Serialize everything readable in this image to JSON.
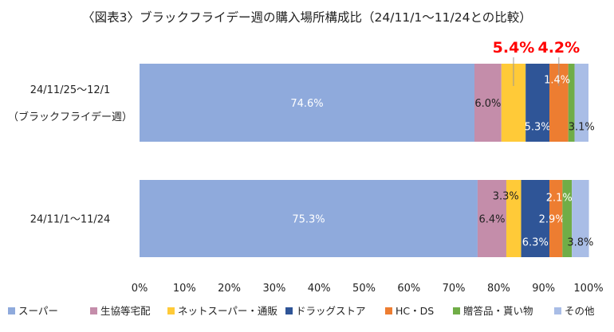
{
  "chart_data": {
    "type": "bar",
    "orientation": "horizontal-stacked-100",
    "title": "〈図表3〉ブラックフライデー週の購入場所構成比（24/11/1～11/24との比較）",
    "categories": [
      [
        "24/11/25～12/1",
        "（ブラックフライデー週）"
      ],
      [
        "24/11/1～11/24"
      ]
    ],
    "series": [
      {
        "name": "スーパー",
        "color": "#8FAADC",
        "values": [
          74.6,
          75.3
        ],
        "labels": [
          "74.6%",
          "75.3%"
        ]
      },
      {
        "name": "生協等宅配",
        "color": "#C48DAA",
        "values": [
          6.0,
          6.4
        ],
        "labels": [
          "6.0%",
          "6.4%"
        ]
      },
      {
        "name": "ネットスーパー・通販",
        "color": "#FFCA38",
        "values": [
          5.4,
          3.3
        ],
        "labels": [
          "",
          "3.3%"
        ]
      },
      {
        "name": "ドラッグストア",
        "color": "#2F5597",
        "values": [
          5.3,
          6.3
        ],
        "labels": [
          "5.3%",
          "6.3%"
        ]
      },
      {
        "name": "HC・DS",
        "color": "#ED7D31",
        "values": [
          4.2,
          2.9
        ],
        "labels": [
          "",
          "2.9%"
        ]
      },
      {
        "name": "贈答品・貰い物",
        "color": "#70AD47",
        "values": [
          1.4,
          2.1
        ],
        "labels": [
          "1.4%",
          "2.1%"
        ]
      },
      {
        "name": "その他",
        "color": "#A9BDE6",
        "values": [
          3.1,
          3.8
        ],
        "labels": [
          "3.1%",
          "3.8%"
        ]
      }
    ],
    "callouts": [
      {
        "series": "ネットスーパー・通販",
        "text": "5.4%",
        "color": "#FF0000"
      },
      {
        "series": "HC・DS",
        "text": "4.2%",
        "color": "#FF0000"
      }
    ],
    "xticks": [
      "0%",
      "10%",
      "20%",
      "30%",
      "40%",
      "50%",
      "60%",
      "70%",
      "80%",
      "90%",
      "100%"
    ],
    "xlim": [
      0,
      100
    ],
    "grid": false,
    "legend": "bottom"
  }
}
